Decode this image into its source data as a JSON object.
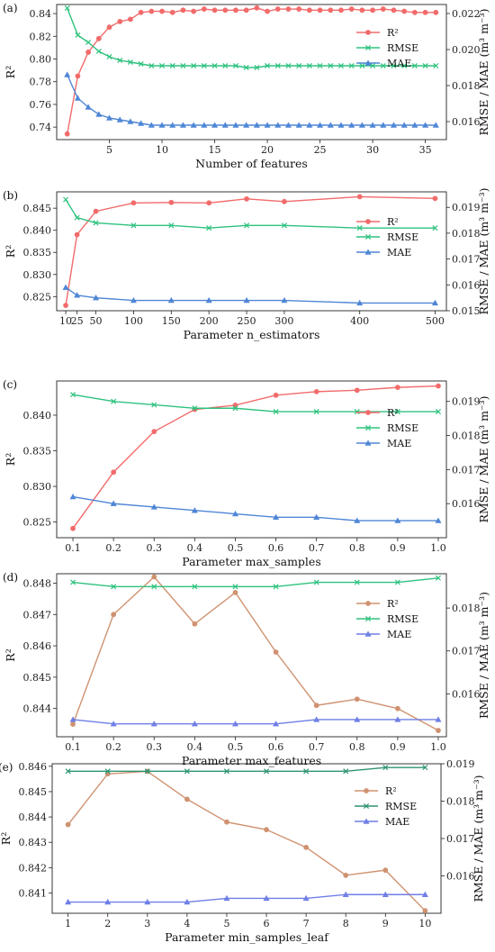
{
  "colors": {
    "r2_pink": "#f26b6b",
    "r2_brown": "#cf9270",
    "rmse_green": "#2ec27e",
    "rmse_teal": "#2e9470",
    "mae_blue": "#4f86d6",
    "mae_blue2": "#6f7fe6"
  },
  "chart_data": [
    {
      "type": "line",
      "panel": "(a)",
      "xlabel": "Number of features",
      "ylabel_left": "R²",
      "ylabel_right": "RMSE / MAE (m³ m⁻³)",
      "xlim": [
        0,
        37
      ],
      "xticks": [
        5,
        10,
        15,
        20,
        25,
        30,
        35
      ],
      "x_tick_labels": [
        "5",
        "10",
        "15",
        "20",
        "25",
        "30",
        "35"
      ],
      "ylim_left": [
        0.729,
        0.848
      ],
      "yticks_left": [
        "0.74",
        "0.76",
        "0.78",
        "0.80",
        "0.82",
        "0.84"
      ],
      "ylim_right": [
        0.015,
        0.0225
      ],
      "yticks_right": [
        "0.016",
        "0.018",
        "0.020",
        "0.022"
      ],
      "x": [
        1,
        2,
        3,
        4,
        5,
        6,
        7,
        8,
        9,
        10,
        11,
        12,
        13,
        14,
        15,
        16,
        17,
        18,
        19,
        20,
        21,
        22,
        23,
        24,
        25,
        26,
        27,
        28,
        29,
        30,
        31,
        32,
        33,
        34,
        35,
        36
      ],
      "series": [
        {
          "name": "R²",
          "axis": "left",
          "marker": "circle",
          "color_key": "r2_pink",
          "values": [
            0.734,
            0.785,
            0.806,
            0.818,
            0.828,
            0.833,
            0.835,
            0.841,
            0.842,
            0.842,
            0.841,
            0.843,
            0.842,
            0.844,
            0.843,
            0.843,
            0.843,
            0.843,
            0.845,
            0.842,
            0.844,
            0.844,
            0.844,
            0.843,
            0.843,
            0.843,
            0.843,
            0.844,
            0.843,
            0.843,
            0.844,
            0.843,
            0.842,
            0.841,
            0.841,
            0.841
          ]
        },
        {
          "name": "RMSE",
          "axis": "right",
          "marker": "x",
          "color_key": "rmse_green",
          "values": [
            0.0223,
            0.0208,
            0.0204,
            0.0199,
            0.0196,
            0.0194,
            0.0193,
            0.0192,
            0.0191,
            0.0191,
            0.0191,
            0.0191,
            0.0191,
            0.0191,
            0.0191,
            0.0191,
            0.0191,
            0.019,
            0.019,
            0.0191,
            0.0191,
            0.0191,
            0.0191,
            0.0191,
            0.0191,
            0.0191,
            0.0191,
            0.0191,
            0.0191,
            0.0191,
            0.0191,
            0.0191,
            0.0191,
            0.0191,
            0.0191,
            0.0191
          ]
        },
        {
          "name": "MAE",
          "axis": "right",
          "marker": "triangle",
          "color_key": "mae_blue",
          "values": [
            0.0186,
            0.0173,
            0.0168,
            0.0164,
            0.0162,
            0.0161,
            0.016,
            0.0159,
            0.0158,
            0.0158,
            0.0158,
            0.0158,
            0.0158,
            0.0158,
            0.0158,
            0.0158,
            0.0158,
            0.0158,
            0.0158,
            0.0158,
            0.0158,
            0.0158,
            0.0158,
            0.0158,
            0.0158,
            0.0158,
            0.0158,
            0.0158,
            0.0158,
            0.0158,
            0.0158,
            0.0158,
            0.0158,
            0.0158,
            0.0158,
            0.0158
          ]
        }
      ],
      "legend": "top-right"
    },
    {
      "type": "line",
      "panel": "(b)",
      "xlabel": "Parameter n_estimators",
      "ylabel_left": "R²",
      "ylabel_right": "RMSE / MAE (m³ m⁻³)",
      "xlim": [
        -2,
        515
      ],
      "xticks": [
        10,
        25,
        50,
        100,
        150,
        200,
        250,
        300,
        400,
        500
      ],
      "x_tick_labels": [
        "10",
        "25",
        "50",
        "100",
        "150",
        "200",
        "250",
        "300",
        "400",
        "500"
      ],
      "ylim_left": [
        0.8218,
        0.8487
      ],
      "yticks_left": [
        "0.825",
        "0.830",
        "0.835",
        "0.840",
        "0.845"
      ],
      "ylim_right": [
        0.015,
        0.0196
      ],
      "yticks_right": [
        "0.015",
        "0.016",
        "0.017",
        "0.018",
        "0.019"
      ],
      "x": [
        10,
        25,
        50,
        100,
        150,
        200,
        250,
        300,
        400,
        500
      ],
      "series": [
        {
          "name": "R²",
          "axis": "left",
          "marker": "circle",
          "color_key": "r2_pink",
          "values": [
            0.823,
            0.839,
            0.8443,
            0.8462,
            0.8463,
            0.8462,
            0.8471,
            0.8465,
            0.8476,
            0.8472
          ]
        },
        {
          "name": "RMSE",
          "axis": "right",
          "marker": "x",
          "color_key": "rmse_green",
          "values": [
            0.0193,
            0.0186,
            0.0184,
            0.0183,
            0.0183,
            0.0182,
            0.0183,
            0.0183,
            0.0182,
            0.0182
          ]
        },
        {
          "name": "MAE",
          "axis": "right",
          "marker": "triangle",
          "color_key": "mae_blue",
          "values": [
            0.0159,
            0.0156,
            0.0155,
            0.0154,
            0.0154,
            0.0154,
            0.0154,
            0.0154,
            0.0153,
            0.0153
          ]
        }
      ],
      "legend": "center-right"
    },
    {
      "type": "line",
      "panel": "(c)",
      "xlabel": "Parameter max_samples",
      "ylabel_left": "R²",
      "ylabel_right": "RMSE / MAE (m³ m⁻³)",
      "xlim": [
        0.06,
        1.02
      ],
      "xticks": [
        0.1,
        0.2,
        0.3,
        0.4,
        0.5,
        0.6,
        0.7,
        0.8,
        0.9,
        1.0
      ],
      "x_tick_labels": [
        "0.1",
        "0.2",
        "0.3",
        "0.4",
        "0.5",
        "0.6",
        "0.7",
        "0.8",
        "0.9",
        "1.0"
      ],
      "ylim_left": [
        0.8228,
        0.8448
      ],
      "yticks_left": [
        "0.825",
        "0.830",
        "0.835",
        "0.840"
      ],
      "ylim_right": [
        0.015,
        0.0196
      ],
      "yticks_right": [
        "0.016",
        "0.017",
        "0.018",
        "0.019"
      ],
      "x": [
        0.1,
        0.2,
        0.3,
        0.4,
        0.5,
        0.6,
        0.7,
        0.8,
        0.9,
        1.0
      ],
      "series": [
        {
          "name": "R²",
          "axis": "left",
          "marker": "circle",
          "color_key": "r2_pink",
          "values": [
            0.8241,
            0.832,
            0.8377,
            0.8408,
            0.8414,
            0.8428,
            0.8433,
            0.8435,
            0.8439,
            0.8441
          ]
        },
        {
          "name": "RMSE",
          "axis": "right",
          "marker": "x",
          "color_key": "rmse_green",
          "values": [
            0.0192,
            0.019,
            0.0189,
            0.0188,
            0.0188,
            0.0187,
            0.0187,
            0.0187,
            0.0187,
            0.0187
          ]
        },
        {
          "name": "MAE",
          "axis": "right",
          "marker": "triangle",
          "color_key": "mae_blue",
          "values": [
            0.0162,
            0.016,
            0.0159,
            0.0158,
            0.0157,
            0.0156,
            0.0156,
            0.0155,
            0.0155,
            0.0155
          ]
        }
      ],
      "legend": "center-right"
    },
    {
      "type": "line",
      "panel": "(d)",
      "xlabel": "Parameter max_features",
      "ylabel_left": "R²",
      "ylabel_right": "RMSE / MAE (m³ m⁻³)",
      "xlim": [
        0.06,
        1.02
      ],
      "xticks": [
        0.1,
        0.2,
        0.3,
        0.4,
        0.5,
        0.6,
        0.7,
        0.8,
        0.9,
        1.0
      ],
      "x_tick_labels": [
        "0.1",
        "0.2",
        "0.3",
        "0.4",
        "0.5",
        "0.6",
        "0.7",
        "0.8",
        "0.9",
        "1.0"
      ],
      "ylim_left": [
        0.8431,
        0.8483
      ],
      "yticks_left": [
        "0.844",
        "0.845",
        "0.846",
        "0.847",
        "0.848"
      ],
      "ylim_right": [
        0.015,
        0.0188
      ],
      "yticks_right": [
        "0.016",
        "0.017",
        "0.018"
      ],
      "x": [
        0.1,
        0.2,
        0.3,
        0.4,
        0.5,
        0.6,
        0.7,
        0.8,
        0.9,
        1.0
      ],
      "series": [
        {
          "name": "R²",
          "axis": "left",
          "marker": "circle",
          "color_key": "r2_brown",
          "values": [
            0.8435,
            0.847,
            0.8482,
            0.8467,
            0.8477,
            0.8458,
            0.8441,
            0.8443,
            0.844,
            0.8433
          ]
        },
        {
          "name": "RMSE",
          "axis": "right",
          "marker": "x",
          "color_key": "rmse_green",
          "values": [
            0.0186,
            0.0185,
            0.0185,
            0.0185,
            0.0185,
            0.0185,
            0.0186,
            0.0186,
            0.0186,
            0.0187
          ]
        },
        {
          "name": "MAE",
          "axis": "right",
          "marker": "triangle",
          "color_key": "mae_blue2",
          "values": [
            0.0154,
            0.0153,
            0.0153,
            0.0153,
            0.0153,
            0.0153,
            0.0154,
            0.0154,
            0.0154,
            0.0154
          ]
        }
      ],
      "legend": "center-right"
    },
    {
      "type": "line",
      "panel": "(e)",
      "xlabel": "Parameter min_samples_leaf",
      "ylabel_left": "R²",
      "ylabel_right": "RMSE / MAE (m³ m⁻³)",
      "xlim": [
        0.6,
        10.4
      ],
      "xticks": [
        1,
        2,
        3,
        4,
        5,
        6,
        7,
        8,
        9,
        10
      ],
      "x_tick_labels": [
        "1",
        "2",
        "3",
        "4",
        "5",
        "6",
        "7",
        "8",
        "9",
        "10"
      ],
      "ylim_left": [
        0.8402,
        0.8461
      ],
      "yticks_left": [
        "0.841",
        "0.842",
        "0.843",
        "0.844",
        "0.845",
        "0.846"
      ],
      "ylim_right": [
        0.015,
        0.019
      ],
      "yticks_right": [
        "0.016",
        "0.017",
        "0.018",
        "0.019"
      ],
      "x": [
        1,
        2,
        3,
        4,
        5,
        6,
        7,
        8,
        9,
        10
      ],
      "series": [
        {
          "name": "R²",
          "axis": "left",
          "marker": "circle",
          "color_key": "r2_brown",
          "values": [
            0.8437,
            0.8457,
            0.8458,
            0.8447,
            0.8438,
            0.8435,
            0.8428,
            0.8417,
            0.8419,
            0.8403
          ]
        },
        {
          "name": "RMSE",
          "axis": "right",
          "marker": "x",
          "color_key": "rmse_teal",
          "values": [
            0.0188,
            0.0188,
            0.0188,
            0.0188,
            0.0188,
            0.0188,
            0.0188,
            0.0188,
            0.0189,
            0.0189
          ]
        },
        {
          "name": "MAE",
          "axis": "right",
          "marker": "triangle",
          "color_key": "mae_blue2",
          "values": [
            0.0153,
            0.0153,
            0.0153,
            0.0153,
            0.0154,
            0.0154,
            0.0154,
            0.0155,
            0.0155,
            0.0155
          ]
        }
      ],
      "legend": "center-right"
    }
  ]
}
